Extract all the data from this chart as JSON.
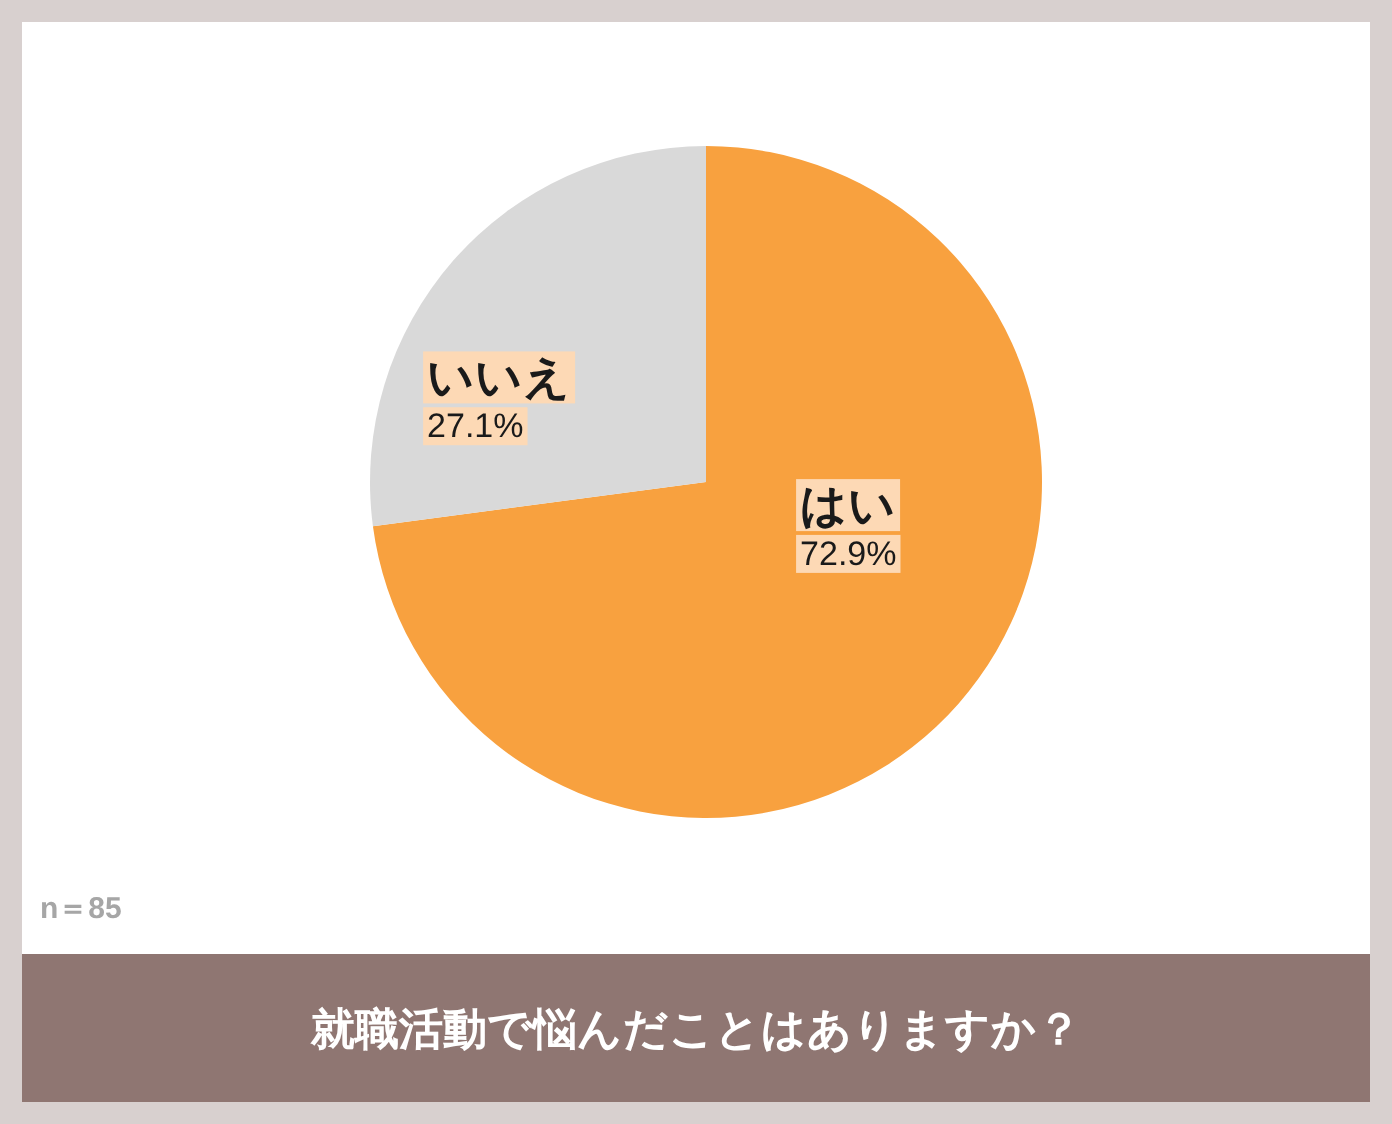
{
  "chart_data": {
    "type": "pie",
    "title": "就職活動で悩んだことはありますか？",
    "categories": [
      "はい",
      "いいえ"
    ],
    "values": [
      72.9,
      27.1
    ],
    "colors": [
      "#f8a13f",
      "#d9d9d9"
    ],
    "value_labels": [
      "72.9%",
      "27.1%"
    ],
    "annotations": [
      "n＝85"
    ]
  }
}
